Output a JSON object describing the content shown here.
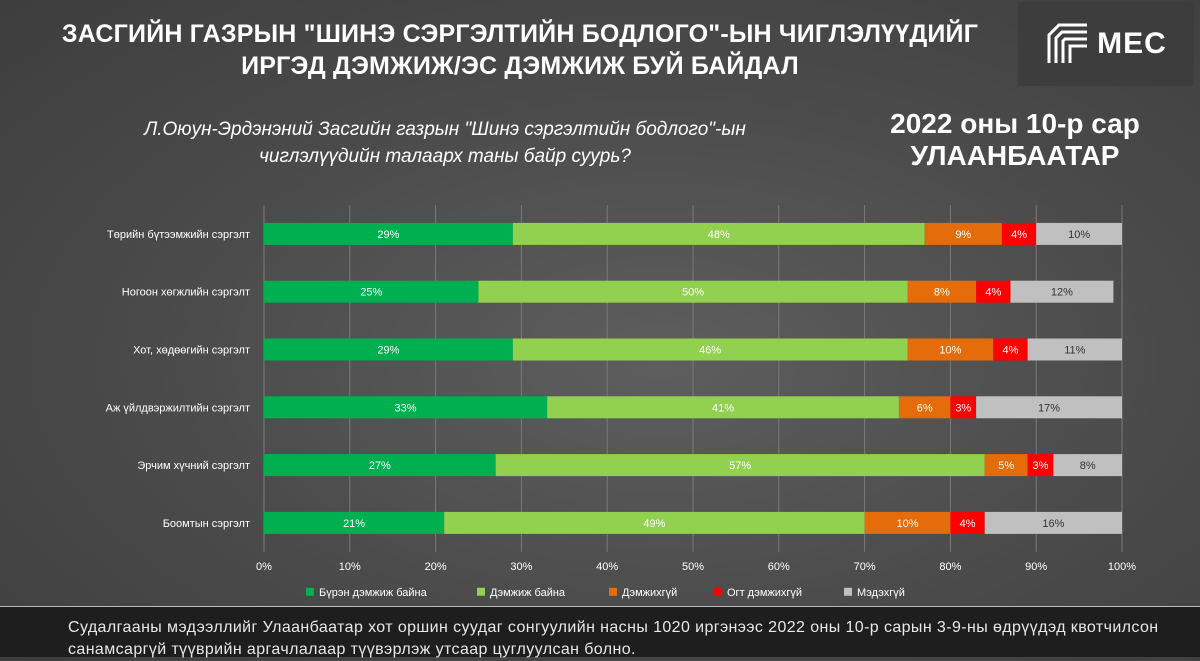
{
  "header": {
    "title_line1": "ЗАСГИЙН ГАЗРЫН \"ШИНЭ СЭРГЭЛТИЙН БОДЛОГО\"-ЫН ЧИГЛЭЛҮҮДИЙГ",
    "title_line2": "ИРГЭД ДЭМЖИЖ/ЭС ДЭМЖИЖ БУЙ БАЙДАЛ",
    "logo_text": "MEC"
  },
  "question": {
    "line1": "Л.Оюун-Эрдэнэний Засгийн газрын \"Шинэ сэргэлтийн бодлого\"-ын",
    "line2": "чиглэлүүдийн талаарх таны байр суурь?"
  },
  "period": {
    "line1": "2022 оны 10-р сар",
    "line2": "УЛААНБААТАР"
  },
  "chart_data": {
    "type": "bar",
    "orientation": "horizontal",
    "stacked": true,
    "categories": [
      "Төрийн бүтээмжийн сэргэлт",
      "Ногоон хөгжлийн сэргэлт",
      "Хот, хөдөөгийн сэргэлт",
      "Аж үйлдвэржилтийн сэргэлт",
      "Эрчим хүчний сэргэлт",
      "Боомтын сэргэлт"
    ],
    "series": [
      {
        "name": "Бүрэн дэмжиж байна",
        "color": "#00b050",
        "values": [
          29,
          25,
          29,
          33,
          27,
          21
        ]
      },
      {
        "name": "Дэмжиж байна",
        "color": "#92d050",
        "values": [
          48,
          50,
          46,
          41,
          57,
          49
        ]
      },
      {
        "name": "Дэмжихгүй",
        "color": "#e46c0a",
        "values": [
          9,
          8,
          10,
          6,
          5,
          10
        ]
      },
      {
        "name": "Огт дэмжихгүй",
        "color": "#ff0000",
        "values": [
          4,
          4,
          4,
          3,
          3,
          4
        ]
      },
      {
        "name": "Мэдэхгүй",
        "color": "#c0c0c0",
        "values": [
          10,
          12,
          11,
          17,
          8,
          16
        ]
      }
    ],
    "xlim": [
      0,
      100
    ],
    "x_ticks": [
      "0%",
      "10%",
      "20%",
      "30%",
      "40%",
      "50%",
      "60%",
      "70%",
      "80%",
      "90%",
      "100%"
    ],
    "value_suffix": "%",
    "legend_position": "bottom",
    "grid": true
  },
  "footer": {
    "note": "Судалгааны мэдээллийг Улаанбаатар хот оршин суудаг сонгуулийн насны 1020 иргэнээс 2022 оны 10-р сарын 3-9-ны өдрүүдэд квотчилсон санамсаргүй түүврийн аргачлалаар түүвэрлэж утсаар цуглуулсан болно."
  }
}
